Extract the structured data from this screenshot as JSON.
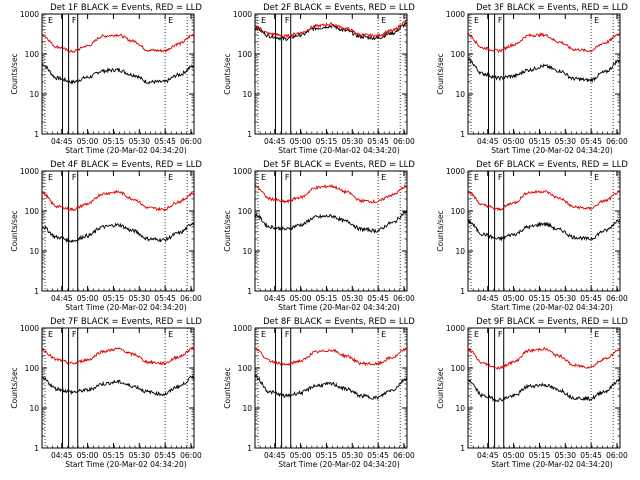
{
  "figure": {
    "ylabel": "Counts/sec",
    "xlabel": "Start Time (20-Mar-02 04:34:20)",
    "xticks": [
      "04:45",
      "05:00",
      "05:15",
      "05:30",
      "05:45",
      "06:00"
    ],
    "yticks": [
      "1",
      "10",
      "100",
      "1000"
    ],
    "markers": [
      "E",
      "F",
      "E"
    ],
    "colors": {
      "events": "#000000",
      "lld": "#e00000",
      "axes": "#000000"
    }
  },
  "chart_data": [
    {
      "type": "line",
      "title": "Det 1F BLACK = Events, RED = LLD",
      "xlabel": "Start Time (20-Mar-02 04:34:20)",
      "ylabel": "Counts/sec",
      "log_y": true,
      "ylim": [
        1,
        1000
      ],
      "x": [
        "04:34",
        "04:45",
        "04:55",
        "05:05",
        "05:15",
        "05:25",
        "05:35",
        "05:45",
        "05:55",
        "06:05",
        "06:14"
      ],
      "series": [
        {
          "name": "Events",
          "color": "#000000",
          "values": [
            55,
            25,
            20,
            26,
            38,
            40,
            30,
            20,
            20,
            30,
            50
          ]
        },
        {
          "name": "LLD",
          "color": "#e00000",
          "values": [
            300,
            150,
            115,
            160,
            280,
            300,
            210,
            125,
            120,
            180,
            300
          ]
        }
      ]
    },
    {
      "type": "line",
      "title": "Det 2F BLACK = Events, RED = LLD",
      "xlabel": "Start Time (20-Mar-02 04:34:20)",
      "ylabel": "Counts/sec",
      "log_y": true,
      "ylim": [
        1,
        1000
      ],
      "x": [
        "04:34",
        "04:45",
        "04:55",
        "05:05",
        "05:15",
        "05:25",
        "05:35",
        "05:45",
        "05:55",
        "06:05",
        "06:14"
      ],
      "series": [
        {
          "name": "Events",
          "color": "#000000",
          "values": [
            450,
            280,
            240,
            300,
            440,
            500,
            380,
            270,
            250,
            330,
            560
          ]
        },
        {
          "name": "LLD",
          "color": "#e00000",
          "values": [
            480,
            320,
            280,
            340,
            500,
            560,
            430,
            300,
            285,
            380,
            650
          ]
        }
      ]
    },
    {
      "type": "line",
      "title": "Det 3F BLACK = Events, RED = LLD",
      "xlabel": "Start Time (20-Mar-02 04:34:20)",
      "ylabel": "Counts/sec",
      "log_y": true,
      "ylim": [
        1,
        1000
      ],
      "x": [
        "04:34",
        "04:45",
        "04:55",
        "05:05",
        "05:15",
        "05:25",
        "05:35",
        "05:45",
        "05:55",
        "06:05",
        "06:14"
      ],
      "series": [
        {
          "name": "Events",
          "color": "#000000",
          "values": [
            70,
            32,
            25,
            28,
            40,
            50,
            38,
            24,
            22,
            35,
            70
          ]
        },
        {
          "name": "LLD",
          "color": "#e00000",
          "values": [
            300,
            140,
            120,
            170,
            290,
            300,
            200,
            130,
            120,
            190,
            320
          ]
        }
      ]
    },
    {
      "type": "line",
      "title": "Det 4F BLACK = Events, RED = LLD",
      "xlabel": "Start Time (20-Mar-02 04:34:20)",
      "ylabel": "Counts/sec",
      "log_y": true,
      "ylim": [
        1,
        1000
      ],
      "x": [
        "04:34",
        "04:45",
        "04:55",
        "05:05",
        "05:15",
        "05:25",
        "05:35",
        "05:45",
        "05:55",
        "06:05",
        "06:14"
      ],
      "series": [
        {
          "name": "Events",
          "color": "#000000",
          "values": [
            40,
            22,
            18,
            24,
            40,
            45,
            32,
            20,
            19,
            28,
            50
          ]
        },
        {
          "name": "LLD",
          "color": "#e00000",
          "values": [
            280,
            130,
            110,
            150,
            270,
            300,
            200,
            120,
            110,
            170,
            280
          ]
        }
      ]
    },
    {
      "type": "line",
      "title": "Det 5F BLACK = Events, RED = LLD",
      "xlabel": "Start Time (20-Mar-02 04:34:20)",
      "ylabel": "Counts/sec",
      "log_y": true,
      "ylim": [
        1,
        1000
      ],
      "x": [
        "04:34",
        "04:45",
        "04:55",
        "05:05",
        "05:15",
        "05:25",
        "05:35",
        "05:45",
        "05:55",
        "06:05",
        "06:14"
      ],
      "series": [
        {
          "name": "Events",
          "color": "#000000",
          "values": [
            80,
            40,
            35,
            45,
            70,
            75,
            55,
            35,
            32,
            50,
            95
          ]
        },
        {
          "name": "LLD",
          "color": "#e00000",
          "values": [
            420,
            200,
            170,
            220,
            380,
            420,
            300,
            180,
            170,
            250,
            420
          ]
        }
      ]
    },
    {
      "type": "line",
      "title": "Det 6F BLACK = Events, RED = LLD",
      "xlabel": "Start Time (20-Mar-02 04:34:20)",
      "ylabel": "Counts/sec",
      "log_y": true,
      "ylim": [
        1,
        1000
      ],
      "x": [
        "04:34",
        "04:45",
        "04:55",
        "05:05",
        "05:15",
        "05:25",
        "05:35",
        "05:45",
        "05:55",
        "06:05",
        "06:14"
      ],
      "series": [
        {
          "name": "Events",
          "color": "#000000",
          "values": [
            55,
            26,
            20,
            26,
            40,
            48,
            34,
            22,
            20,
            32,
            60
          ]
        },
        {
          "name": "LLD",
          "color": "#e00000",
          "values": [
            300,
            140,
            110,
            160,
            290,
            310,
            210,
            125,
            115,
            180,
            300
          ]
        }
      ]
    },
    {
      "type": "line",
      "title": "Det 7F BLACK = Events, RED = LLD",
      "xlabel": "Start Time (20-Mar-02 04:34:20)",
      "ylabel": "Counts/sec",
      "log_y": true,
      "ylim": [
        1,
        1000
      ],
      "x": [
        "04:34",
        "04:45",
        "04:55",
        "05:05",
        "05:15",
        "05:25",
        "05:35",
        "05:45",
        "05:55",
        "06:05",
        "06:14"
      ],
      "series": [
        {
          "name": "Events",
          "color": "#000000",
          "values": [
            55,
            30,
            25,
            28,
            40,
            45,
            35,
            25,
            22,
            35,
            60
          ]
        },
        {
          "name": "LLD",
          "color": "#e00000",
          "values": [
            280,
            160,
            130,
            160,
            260,
            300,
            220,
            140,
            130,
            190,
            320
          ]
        }
      ]
    },
    {
      "type": "line",
      "title": "Det 8F BLACK = Events, RED = LLD",
      "xlabel": "Start Time (20-Mar-02 04:34:20)",
      "ylabel": "Counts/sec",
      "log_y": true,
      "ylim": [
        1,
        1000
      ],
      "x": [
        "04:34",
        "04:45",
        "04:55",
        "05:05",
        "05:15",
        "05:25",
        "05:35",
        "05:45",
        "05:55",
        "06:05",
        "06:14"
      ],
      "series": [
        {
          "name": "Events",
          "color": "#000000",
          "values": [
            60,
            25,
            20,
            24,
            36,
            40,
            30,
            20,
            18,
            28,
            55
          ]
        },
        {
          "name": "LLD",
          "color": "#e00000",
          "values": [
            300,
            150,
            120,
            150,
            250,
            280,
            200,
            130,
            125,
            180,
            300
          ]
        }
      ]
    },
    {
      "type": "line",
      "title": "Det 9F BLACK = Events, RED = LLD",
      "xlabel": "Start Time (20-Mar-02 04:34:20)",
      "ylabel": "Counts/sec",
      "log_y": true,
      "ylim": [
        1,
        1000
      ],
      "x": [
        "04:34",
        "04:45",
        "04:55",
        "05:05",
        "05:15",
        "05:25",
        "05:35",
        "05:45",
        "05:55",
        "06:05",
        "06:14"
      ],
      "series": [
        {
          "name": "Events",
          "color": "#000000",
          "values": [
            50,
            20,
            16,
            20,
            35,
            38,
            28,
            18,
            17,
            26,
            50
          ]
        },
        {
          "name": "LLD",
          "color": "#e00000",
          "values": [
            290,
            130,
            100,
            140,
            270,
            300,
            200,
            115,
            105,
            170,
            280
          ]
        }
      ]
    }
  ]
}
